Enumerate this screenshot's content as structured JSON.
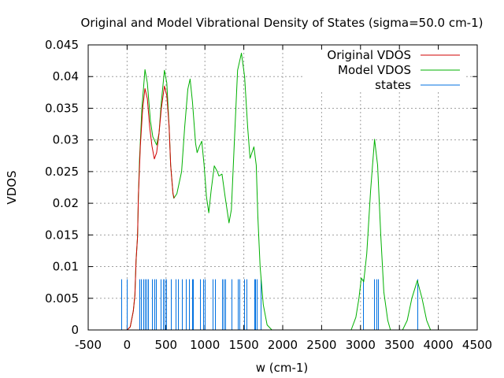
{
  "chart_data": {
    "type": "line",
    "title": "Original and Model Vibrational Density of States (sigma=50.0 cm-1)",
    "xlabel": "w (cm-1)",
    "ylabel": "VDOS",
    "xlim": [
      -500,
      4500
    ],
    "ylim": [
      0,
      0.045
    ],
    "xticks": [
      -500,
      0,
      500,
      1000,
      1500,
      2000,
      2500,
      3000,
      3500,
      4000,
      4500
    ],
    "xtick_labels": [
      "-500",
      "0",
      "500",
      "1000",
      "1500",
      "2000",
      "2500",
      "3000",
      "3500",
      "4000",
      "4500"
    ],
    "yticks": [
      0,
      0.005,
      0.01,
      0.015,
      0.02,
      0.025,
      0.03,
      0.035,
      0.04,
      0.045
    ],
    "ytick_labels": [
      "0",
      "0.005",
      "0.01",
      "0.015",
      "0.02",
      "0.025",
      "0.03",
      "0.035",
      "0.04",
      "0.045"
    ],
    "grid": true,
    "legend_position": "top-right",
    "series": [
      {
        "name": "Original VDOS",
        "color": "#d00000",
        "kind": "line",
        "points": [
          [
            0,
            0
          ],
          [
            40,
            0.0005
          ],
          [
            80,
            0.003
          ],
          [
            100,
            0.0055
          ],
          [
            115,
            0.011
          ],
          [
            135,
            0.0148
          ],
          [
            145,
            0.021
          ],
          [
            170,
            0.029
          ],
          [
            200,
            0.035
          ],
          [
            230,
            0.0381
          ],
          [
            260,
            0.0365
          ],
          [
            290,
            0.032
          ],
          [
            320,
            0.029
          ],
          [
            350,
            0.027
          ],
          [
            380,
            0.028
          ],
          [
            410,
            0.031
          ],
          [
            440,
            0.035
          ],
          [
            480,
            0.0385
          ],
          [
            510,
            0.037
          ],
          [
            540,
            0.032
          ],
          [
            560,
            0.026
          ],
          [
            590,
            0.0215
          ],
          [
            605,
            0.0208
          ]
        ]
      },
      {
        "name": "Model VDOS",
        "color": "#00b000",
        "kind": "line",
        "points": [
          [
            0,
            0
          ],
          [
            40,
            0.0005
          ],
          [
            80,
            0.003
          ],
          [
            100,
            0.0055
          ],
          [
            115,
            0.011
          ],
          [
            135,
            0.0148
          ],
          [
            145,
            0.021
          ],
          [
            160,
            0.027
          ],
          [
            190,
            0.035
          ],
          [
            230,
            0.0411
          ],
          [
            260,
            0.039
          ],
          [
            300,
            0.033
          ],
          [
            330,
            0.0305
          ],
          [
            380,
            0.0292
          ],
          [
            410,
            0.031
          ],
          [
            440,
            0.036
          ],
          [
            480,
            0.041
          ],
          [
            510,
            0.039
          ],
          [
            540,
            0.032
          ],
          [
            560,
            0.026
          ],
          [
            590,
            0.0215
          ],
          [
            600,
            0.0208
          ],
          [
            640,
            0.0215
          ],
          [
            700,
            0.025
          ],
          [
            740,
            0.032
          ],
          [
            780,
            0.038
          ],
          [
            810,
            0.0396
          ],
          [
            840,
            0.036
          ],
          [
            880,
            0.0295
          ],
          [
            900,
            0.028
          ],
          [
            930,
            0.029
          ],
          [
            960,
            0.0298
          ],
          [
            990,
            0.026
          ],
          [
            1020,
            0.021
          ],
          [
            1050,
            0.0185
          ],
          [
            1080,
            0.022
          ],
          [
            1120,
            0.0259
          ],
          [
            1160,
            0.025
          ],
          [
            1180,
            0.0243
          ],
          [
            1220,
            0.0246
          ],
          [
            1260,
            0.021
          ],
          [
            1310,
            0.0169
          ],
          [
            1340,
            0.019
          ],
          [
            1380,
            0.03
          ],
          [
            1420,
            0.041
          ],
          [
            1470,
            0.0437
          ],
          [
            1510,
            0.04
          ],
          [
            1550,
            0.032
          ],
          [
            1580,
            0.0271
          ],
          [
            1630,
            0.0289
          ],
          [
            1660,
            0.026
          ],
          [
            1680,
            0.018
          ],
          [
            1710,
            0.01
          ],
          [
            1750,
            0.004
          ],
          [
            1800,
            0.0008
          ],
          [
            1860,
            0
          ],
          [
            2880,
            0
          ],
          [
            2940,
            0.002
          ],
          [
            2980,
            0.005
          ],
          [
            3010,
            0.0082
          ],
          [
            3040,
            0.0076
          ],
          [
            3080,
            0.012
          ],
          [
            3130,
            0.022
          ],
          [
            3180,
            0.0301
          ],
          [
            3220,
            0.026
          ],
          [
            3260,
            0.015
          ],
          [
            3300,
            0.006
          ],
          [
            3350,
            0.0015
          ],
          [
            3385,
            0
          ],
          [
            3540,
            0
          ],
          [
            3600,
            0.0015
          ],
          [
            3660,
            0.005
          ],
          [
            3730,
            0.0078
          ],
          [
            3790,
            0.005
          ],
          [
            3850,
            0.0015
          ],
          [
            3900,
            0
          ]
        ]
      },
      {
        "name": "states",
        "color": "#0070e0",
        "kind": "impulses",
        "height": 0.008,
        "x": [
          -73,
          -2,
          154,
          180,
          207,
          231,
          251,
          271,
          322,
          346,
          372,
          433,
          464,
          484,
          504,
          565,
          626,
          650,
          703,
          754,
          792,
          838,
          848,
          939,
          980,
          997,
          1101,
          1132,
          1217,
          1243,
          1260,
          1344,
          1425,
          1445,
          1506,
          1536,
          1638,
          1650,
          1662,
          1716,
          3031,
          3176,
          3206,
          3226,
          3733
        ]
      }
    ]
  }
}
